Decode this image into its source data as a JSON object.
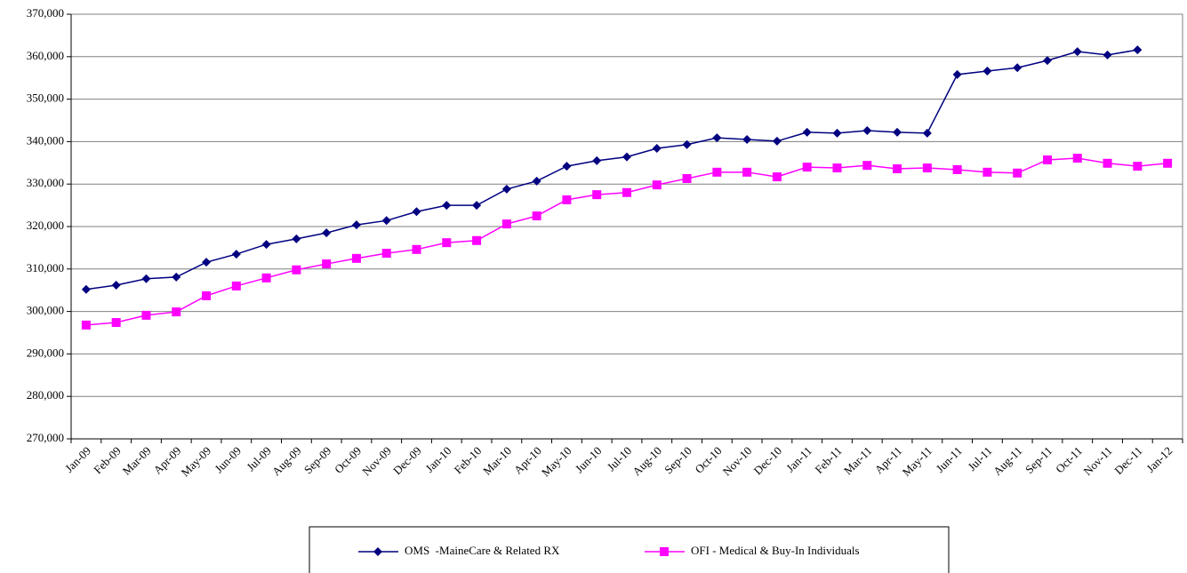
{
  "chart_data": {
    "type": "line",
    "categories": [
      "Jan-09",
      "Feb-09",
      "Mar-09",
      "Apr-09",
      "May-09",
      "Jun-09",
      "Jul-09",
      "Aug-09",
      "Sep-09",
      "Oct-09",
      "Nov-09",
      "Dec-09",
      "Jan-10",
      "Feb-10",
      "Mar-10",
      "Apr-10",
      "May-10",
      "Jun-10",
      "Jul-10",
      "Aug-10",
      "Sep-10",
      "Oct-10",
      "Nov-10",
      "Dec-10",
      "Jan-11",
      "Feb-11",
      "Mar-11",
      "Apr-11",
      "May-11",
      "Jun-11",
      "Jul-11",
      "Aug-11",
      "Sep-11",
      "Oct-11",
      "Nov-11",
      "Dec-11",
      "Jan-12"
    ],
    "series": [
      {
        "name": "OMS  -MaineCare & Related RX",
        "color": "#000080",
        "marker": "diamond",
        "values": [
          305200,
          306200,
          307700,
          308100,
          311600,
          313500,
          315800,
          317100,
          318500,
          320400,
          321400,
          323500,
          325000,
          325000,
          328800,
          330700,
          334200,
          335500,
          336400,
          338400,
          339300,
          340900,
          340500,
          340100,
          342200,
          342000,
          342600,
          342200,
          342000,
          355800,
          356600,
          357400,
          359100,
          361200,
          360400,
          361600,
          null
        ]
      },
      {
        "name": "OFI - Medical & Buy-In Individuals",
        "color": "#ff00ff",
        "marker": "square",
        "values": [
          296800,
          297400,
          299100,
          299900,
          303700,
          306000,
          307900,
          309800,
          311200,
          312500,
          313700,
          314600,
          316200,
          316700,
          320600,
          322500,
          326300,
          327500,
          328000,
          329800,
          331300,
          332800,
          332800,
          331700,
          334000,
          333800,
          334400,
          333600,
          333800,
          333400,
          332800,
          332600,
          335700,
          336100,
          334900,
          334200,
          334900
        ]
      }
    ],
    "ylim": [
      270000,
      370000
    ],
    "yticks": [
      {
        "value": 270000,
        "label": "270,000"
      },
      {
        "value": 280000,
        "label": "280,000"
      },
      {
        "value": 290000,
        "label": "290,000"
      },
      {
        "value": 300000,
        "label": "300,000"
      },
      {
        "value": 310000,
        "label": "310,000"
      },
      {
        "value": 320000,
        "label": "320,000"
      },
      {
        "value": 330000,
        "label": "330,000"
      },
      {
        "value": 340000,
        "label": "340,000"
      },
      {
        "value": 350000,
        "label": "350,000"
      },
      {
        "value": 360000,
        "label": "360,000"
      },
      {
        "value": 370000,
        "label": "370,000"
      }
    ],
    "grid": true,
    "legend": "bottom"
  }
}
